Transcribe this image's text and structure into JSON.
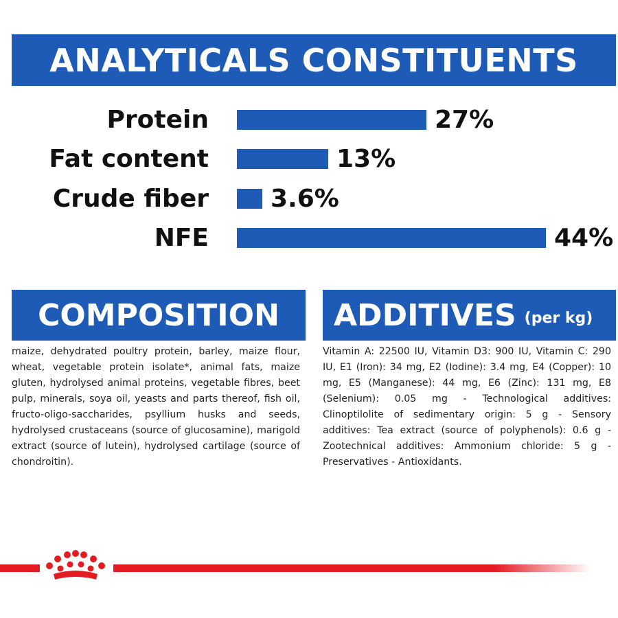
{
  "analyticals": {
    "title": "ANALYTICALS CONSTITUENTS",
    "rows": [
      {
        "label": "Protein",
        "value_text": "27%",
        "value": 27
      },
      {
        "label": "Fat content",
        "value_text": "13%",
        "value": 13
      },
      {
        "label": "Crude fiber",
        "value_text": "3.6%",
        "value": 3.6
      },
      {
        "label": "NFE",
        "value_text": "44%",
        "value": 44
      }
    ]
  },
  "composition": {
    "title": "COMPOSITION",
    "text": "maize, dehydrated poultry protein, barley, maize flour, wheat, vegetable protein isolate*, animal fats, maize gluten, hydrolysed animal proteins, vegetable fibres, beet pulp, minerals, soya oil, yeasts and parts thereof, fish oil, fructo-oligo-saccharides, psyllium husks and seeds, hydrolysed crustaceans (source of glucosamine), marigold extract (source of lutein), hydrolysed cartilage (source of chondroitin)."
  },
  "additives": {
    "title": "ADDITIVES",
    "unit": "(per kg)",
    "text": "Vitamin A: 22500 IU, Vitamin D3: 900 IU, Vitamin C: 290 IU, E1 (Iron): 34 mg, E2 (Iodine): 3.4 mg, E4 (Copper): 10 mg, E5 (Manganese): 44 mg, E6 (Zinc): 131 mg, E8 (Selenium): 0.05 mg - Technological additives: Clinoptilolite of sedimentary origin: 5 g - Sensory additives: Tea extract (source of polyphenols): 0.6 g - Zootechnical additives: Ammonium chloride: 5 g - Preservatives - Antioxidants."
  },
  "brand": {
    "logo_icon": "crown-icon",
    "accent_color": "#1d5bb6",
    "brand_red": "#e31c23"
  }
}
